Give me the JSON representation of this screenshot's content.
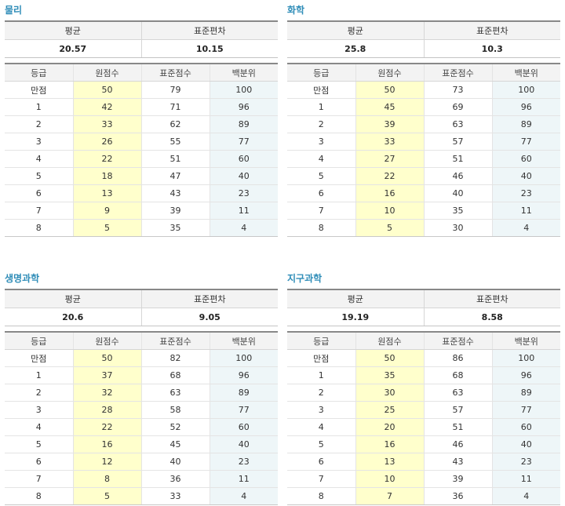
{
  "tables": [
    {
      "subject": "물리",
      "labels": {
        "mean": "평균",
        "stddev": "표준편차",
        "grade": "등급",
        "raw": "원점수",
        "standard": "표준점수",
        "percentile": "백분위"
      },
      "mean": "20.57",
      "stddev": "10.15",
      "rows": [
        {
          "grade": "만점",
          "raw": "50",
          "standard": "79",
          "percentile": "100"
        },
        {
          "grade": "1",
          "raw": "42",
          "standard": "71",
          "percentile": "96"
        },
        {
          "grade": "2",
          "raw": "33",
          "standard": "62",
          "percentile": "89"
        },
        {
          "grade": "3",
          "raw": "26",
          "standard": "55",
          "percentile": "77"
        },
        {
          "grade": "4",
          "raw": "22",
          "standard": "51",
          "percentile": "60"
        },
        {
          "grade": "5",
          "raw": "18",
          "standard": "47",
          "percentile": "40"
        },
        {
          "grade": "6",
          "raw": "13",
          "standard": "43",
          "percentile": "23"
        },
        {
          "grade": "7",
          "raw": "9",
          "standard": "39",
          "percentile": "11"
        },
        {
          "grade": "8",
          "raw": "5",
          "standard": "35",
          "percentile": "4"
        }
      ]
    },
    {
      "subject": "화학",
      "labels": {
        "mean": "평균",
        "stddev": "표준편차",
        "grade": "등급",
        "raw": "원점수",
        "standard": "표준점수",
        "percentile": "백분위"
      },
      "mean": "25.8",
      "stddev": "10.3",
      "rows": [
        {
          "grade": "만점",
          "raw": "50",
          "standard": "73",
          "percentile": "100"
        },
        {
          "grade": "1",
          "raw": "45",
          "standard": "69",
          "percentile": "96"
        },
        {
          "grade": "2",
          "raw": "39",
          "standard": "63",
          "percentile": "89"
        },
        {
          "grade": "3",
          "raw": "33",
          "standard": "57",
          "percentile": "77"
        },
        {
          "grade": "4",
          "raw": "27",
          "standard": "51",
          "percentile": "60"
        },
        {
          "grade": "5",
          "raw": "22",
          "standard": "46",
          "percentile": "40"
        },
        {
          "grade": "6",
          "raw": "16",
          "standard": "40",
          "percentile": "23"
        },
        {
          "grade": "7",
          "raw": "10",
          "standard": "35",
          "percentile": "11"
        },
        {
          "grade": "8",
          "raw": "5",
          "standard": "30",
          "percentile": "4"
        }
      ]
    },
    {
      "subject": "생명과학",
      "labels": {
        "mean": "평균",
        "stddev": "표준편차",
        "grade": "등급",
        "raw": "원점수",
        "standard": "표준점수",
        "percentile": "백분위"
      },
      "mean": "20.6",
      "stddev": "9.05",
      "rows": [
        {
          "grade": "만점",
          "raw": "50",
          "standard": "82",
          "percentile": "100"
        },
        {
          "grade": "1",
          "raw": "37",
          "standard": "68",
          "percentile": "96"
        },
        {
          "grade": "2",
          "raw": "32",
          "standard": "63",
          "percentile": "89"
        },
        {
          "grade": "3",
          "raw": "28",
          "standard": "58",
          "percentile": "77"
        },
        {
          "grade": "4",
          "raw": "22",
          "standard": "52",
          "percentile": "60"
        },
        {
          "grade": "5",
          "raw": "16",
          "standard": "45",
          "percentile": "40"
        },
        {
          "grade": "6",
          "raw": "12",
          "standard": "40",
          "percentile": "23"
        },
        {
          "grade": "7",
          "raw": "8",
          "standard": "36",
          "percentile": "11"
        },
        {
          "grade": "8",
          "raw": "5",
          "standard": "33",
          "percentile": "4"
        }
      ]
    },
    {
      "subject": "지구과학",
      "labels": {
        "mean": "평균",
        "stddev": "표준편차",
        "grade": "등급",
        "raw": "원점수",
        "standard": "표준점수",
        "percentile": "백분위"
      },
      "mean": "19.19",
      "stddev": "8.58",
      "rows": [
        {
          "grade": "만점",
          "raw": "50",
          "standard": "86",
          "percentile": "100"
        },
        {
          "grade": "1",
          "raw": "35",
          "standard": "68",
          "percentile": "96"
        },
        {
          "grade": "2",
          "raw": "30",
          "standard": "63",
          "percentile": "89"
        },
        {
          "grade": "3",
          "raw": "25",
          "standard": "57",
          "percentile": "77"
        },
        {
          "grade": "4",
          "raw": "20",
          "standard": "51",
          "percentile": "60"
        },
        {
          "grade": "5",
          "raw": "16",
          "standard": "46",
          "percentile": "40"
        },
        {
          "grade": "6",
          "raw": "13",
          "standard": "43",
          "percentile": "23"
        },
        {
          "grade": "7",
          "raw": "10",
          "standard": "39",
          "percentile": "11"
        },
        {
          "grade": "8",
          "raw": "7",
          "standard": "36",
          "percentile": "4"
        }
      ]
    }
  ]
}
